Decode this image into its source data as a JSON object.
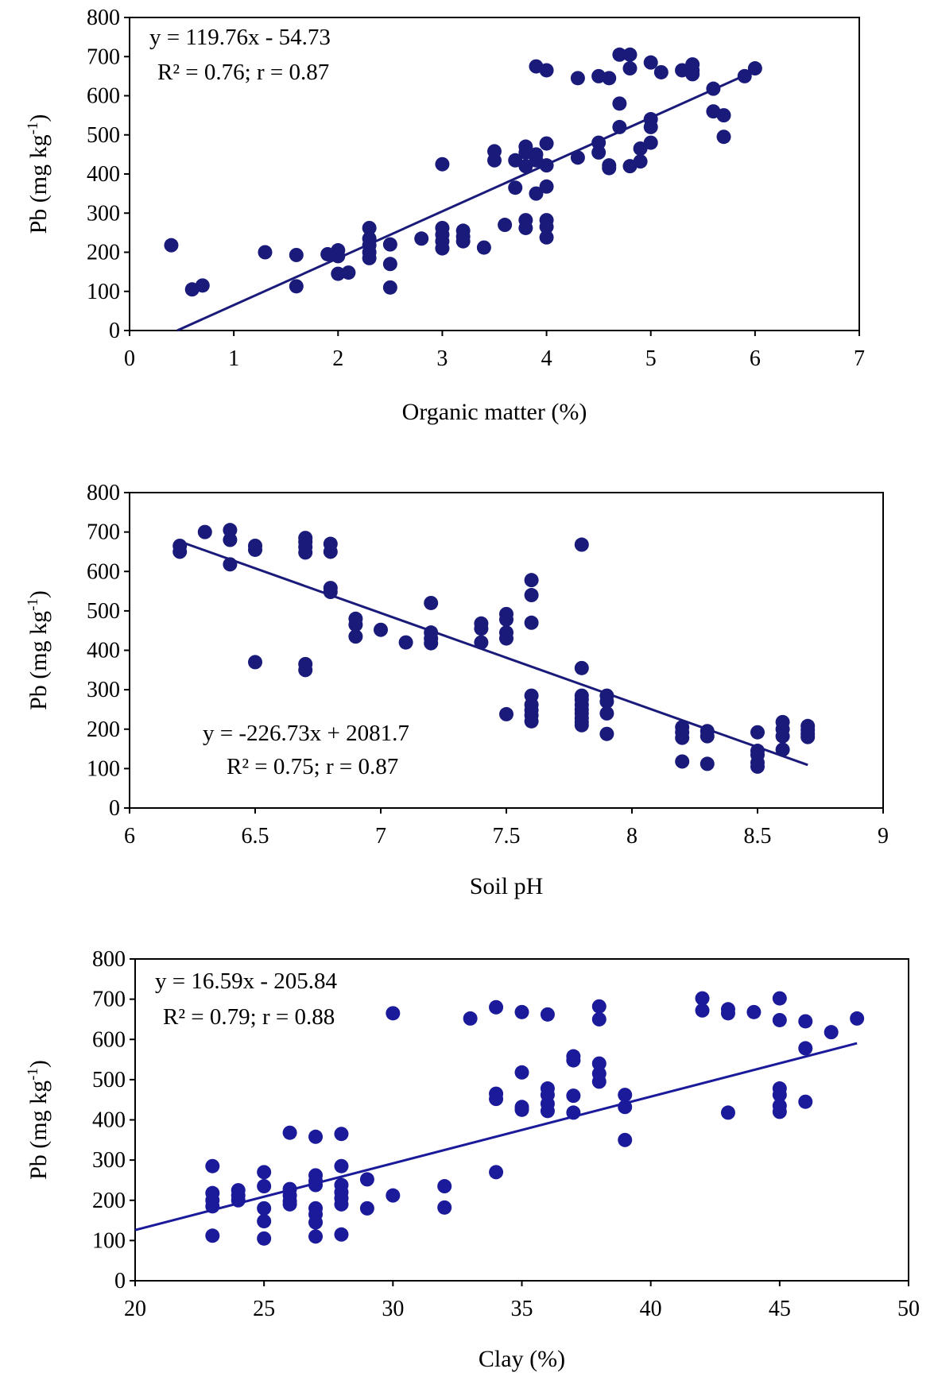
{
  "chart_data": [
    {
      "type": "scatter",
      "xlabel": "Organic matter (%)",
      "ylabel_main": "Pb (mg kg",
      "ylabel_sup": "-1",
      "ylabel_close": ")",
      "xlim": [
        0,
        7
      ],
      "ylim": [
        0,
        800
      ],
      "xticks": [
        "0",
        "1",
        "2",
        "3",
        "4",
        "5",
        "6",
        "7"
      ],
      "yticks": [
        "0",
        "100",
        "200",
        "300",
        "400",
        "500",
        "600",
        "700",
        "800"
      ],
      "equation": "y = 119.76x - 54.73",
      "stats": "R² = 0.76; r = 0.87",
      "equation_position": "top-left",
      "trendline": {
        "slope": 119.76,
        "intercept": -54.73,
        "x_range": [
          0.457,
          6.0
        ]
      },
      "colors": {
        "points": "#1a1a7a",
        "line": "#1a1a7a"
      },
      "points": [
        [
          0.4,
          218
        ],
        [
          0.6,
          105
        ],
        [
          0.7,
          115
        ],
        [
          1.3,
          200
        ],
        [
          1.6,
          193
        ],
        [
          1.6,
          113
        ],
        [
          1.9,
          195
        ],
        [
          2.0,
          205
        ],
        [
          2.0,
          190
        ],
        [
          2.0,
          145
        ],
        [
          2.1,
          148
        ],
        [
          2.3,
          262
        ],
        [
          2.3,
          235
        ],
        [
          2.3,
          218
        ],
        [
          2.3,
          200
        ],
        [
          2.3,
          185
        ],
        [
          2.5,
          220
        ],
        [
          2.5,
          170
        ],
        [
          2.5,
          110
        ],
        [
          2.8,
          235
        ],
        [
          3.0,
          425
        ],
        [
          3.0,
          262
        ],
        [
          3.0,
          245
        ],
        [
          3.0,
          228
        ],
        [
          3.0,
          210
        ],
        [
          3.2,
          255
        ],
        [
          3.2,
          240
        ],
        [
          3.2,
          228
        ],
        [
          3.4,
          212
        ],
        [
          3.5,
          458
        ],
        [
          3.5,
          435
        ],
        [
          3.6,
          270
        ],
        [
          3.7,
          435
        ],
        [
          3.7,
          365
        ],
        [
          3.8,
          470
        ],
        [
          3.8,
          455
        ],
        [
          3.8,
          420
        ],
        [
          3.8,
          282
        ],
        [
          3.8,
          262
        ],
        [
          3.9,
          675
        ],
        [
          3.9,
          450
        ],
        [
          3.9,
          435
        ],
        [
          3.9,
          350
        ],
        [
          4.0,
          665
        ],
        [
          4.0,
          478
        ],
        [
          4.0,
          422
        ],
        [
          4.0,
          368
        ],
        [
          4.0,
          282
        ],
        [
          4.0,
          265
        ],
        [
          4.0,
          238
        ],
        [
          4.3,
          645
        ],
        [
          4.3,
          442
        ],
        [
          4.5,
          650
        ],
        [
          4.5,
          480
        ],
        [
          4.5,
          455
        ],
        [
          4.6,
          645
        ],
        [
          4.6,
          422
        ],
        [
          4.6,
          415
        ],
        [
          4.7,
          705
        ],
        [
          4.7,
          580
        ],
        [
          4.7,
          520
        ],
        [
          4.8,
          705
        ],
        [
          4.8,
          670
        ],
        [
          4.8,
          420
        ],
        [
          4.9,
          465
        ],
        [
          4.9,
          432
        ],
        [
          5.0,
          685
        ],
        [
          5.0,
          540
        ],
        [
          5.0,
          520
        ],
        [
          5.0,
          480
        ],
        [
          5.1,
          660
        ],
        [
          5.3,
          665
        ],
        [
          5.4,
          680
        ],
        [
          5.4,
          665
        ],
        [
          5.4,
          655
        ],
        [
          5.6,
          618
        ],
        [
          5.6,
          560
        ],
        [
          5.7,
          550
        ],
        [
          5.7,
          495
        ],
        [
          5.9,
          650
        ],
        [
          6.0,
          670
        ]
      ]
    },
    {
      "type": "scatter",
      "xlabel": "Soil pH",
      "ylabel_main": "Pb (mg kg",
      "ylabel_sup": "-1",
      "ylabel_close": ")",
      "xlim": [
        6,
        9
      ],
      "ylim": [
        0,
        800
      ],
      "xticks": [
        "6",
        "6.5",
        "7",
        "7.5",
        "8",
        "8.5",
        "9"
      ],
      "yticks": [
        "0",
        "100",
        "200",
        "300",
        "400",
        "500",
        "600",
        "700",
        "800"
      ],
      "equation": "y = -226.73x + 2081.7",
      "stats": "R² = 0.75; r = 0.87",
      "equation_position": "bottom-center",
      "trendline": {
        "slope": -226.73,
        "intercept": 2081.7,
        "x_range": [
          6.2,
          8.7
        ]
      },
      "colors": {
        "points": "#1a1a7a",
        "line": "#1a1a7a"
      },
      "points": [
        [
          6.2,
          665
        ],
        [
          6.2,
          650
        ],
        [
          6.3,
          700
        ],
        [
          6.4,
          705
        ],
        [
          6.4,
          680
        ],
        [
          6.4,
          618
        ],
        [
          6.5,
          665
        ],
        [
          6.5,
          655
        ],
        [
          6.5,
          370
        ],
        [
          6.7,
          685
        ],
        [
          6.7,
          675
        ],
        [
          6.7,
          662
        ],
        [
          6.7,
          648
        ],
        [
          6.7,
          365
        ],
        [
          6.7,
          350
        ],
        [
          6.8,
          670
        ],
        [
          6.8,
          650
        ],
        [
          6.8,
          558
        ],
        [
          6.8,
          548
        ],
        [
          6.9,
          480
        ],
        [
          6.9,
          465
        ],
        [
          6.9,
          435
        ],
        [
          7.0,
          452
        ],
        [
          7.1,
          420
        ],
        [
          7.2,
          520
        ],
        [
          7.2,
          445
        ],
        [
          7.2,
          430
        ],
        [
          7.2,
          418
        ],
        [
          7.4,
          468
        ],
        [
          7.4,
          455
        ],
        [
          7.4,
          420
        ],
        [
          7.5,
          492
        ],
        [
          7.5,
          478
        ],
        [
          7.5,
          445
        ],
        [
          7.5,
          430
        ],
        [
          7.5,
          238
        ],
        [
          7.6,
          578
        ],
        [
          7.6,
          540
        ],
        [
          7.6,
          470
        ],
        [
          7.6,
          285
        ],
        [
          7.6,
          262
        ],
        [
          7.6,
          248
        ],
        [
          7.6,
          235
        ],
        [
          7.6,
          220
        ],
        [
          7.8,
          668
        ],
        [
          7.8,
          355
        ],
        [
          7.8,
          285
        ],
        [
          7.8,
          275
        ],
        [
          7.8,
          262
        ],
        [
          7.8,
          250
        ],
        [
          7.8,
          240
        ],
        [
          7.8,
          228
        ],
        [
          7.8,
          218
        ],
        [
          7.8,
          210
        ],
        [
          7.9,
          285
        ],
        [
          7.9,
          270
        ],
        [
          7.9,
          240
        ],
        [
          7.9,
          188
        ],
        [
          8.2,
          205
        ],
        [
          8.2,
          192
        ],
        [
          8.2,
          178
        ],
        [
          8.2,
          118
        ],
        [
          8.3,
          195
        ],
        [
          8.3,
          182
        ],
        [
          8.3,
          112
        ],
        [
          8.5,
          192
        ],
        [
          8.5,
          145
        ],
        [
          8.5,
          135
        ],
        [
          8.5,
          115
        ],
        [
          8.5,
          105
        ],
        [
          8.6,
          218
        ],
        [
          8.6,
          200
        ],
        [
          8.6,
          182
        ],
        [
          8.6,
          148
        ],
        [
          8.7,
          208
        ],
        [
          8.7,
          198
        ],
        [
          8.7,
          188
        ],
        [
          8.7,
          180
        ]
      ]
    },
    {
      "type": "scatter",
      "xlabel": "Clay (%)",
      "ylabel_main": "Pb (mg kg",
      "ylabel_sup": "-1",
      "ylabel_close": ")",
      "xlim": [
        20,
        50
      ],
      "ylim": [
        0,
        800
      ],
      "xticks": [
        "20",
        "25",
        "30",
        "35",
        "40",
        "45",
        "50"
      ],
      "yticks": [
        "0",
        "100",
        "200",
        "300",
        "400",
        "500",
        "600",
        "700",
        "800"
      ],
      "equation": "y = 16.59x - 205.84",
      "stats": "R² = 0.79; r = 0.88",
      "equation_position": "top-left",
      "trendline": {
        "slope": 16.59,
        "intercept": -205.84,
        "x_range": [
          20,
          48
        ]
      },
      "colors": {
        "points": "#1a1a9a",
        "line": "#1a1a9a"
      },
      "points": [
        [
          23,
          285
        ],
        [
          23,
          218
        ],
        [
          23,
          200
        ],
        [
          23,
          185
        ],
        [
          23,
          112
        ],
        [
          24,
          225
        ],
        [
          24,
          212
        ],
        [
          24,
          200
        ],
        [
          25,
          270
        ],
        [
          25,
          235
        ],
        [
          25,
          180
        ],
        [
          25,
          148
        ],
        [
          25,
          105
        ],
        [
          26,
          368
        ],
        [
          26,
          228
        ],
        [
          26,
          212
        ],
        [
          26,
          198
        ],
        [
          26,
          190
        ],
        [
          27,
          358
        ],
        [
          27,
          262
        ],
        [
          27,
          248
        ],
        [
          27,
          238
        ],
        [
          27,
          180
        ],
        [
          27,
          165
        ],
        [
          27,
          145
        ],
        [
          27,
          110
        ],
        [
          28,
          365
        ],
        [
          28,
          285
        ],
        [
          28,
          238
        ],
        [
          28,
          220
        ],
        [
          28,
          205
        ],
        [
          28,
          190
        ],
        [
          28,
          115
        ],
        [
          29,
          252
        ],
        [
          29,
          180
        ],
        [
          30,
          665
        ],
        [
          30,
          212
        ],
        [
          32,
          235
        ],
        [
          32,
          182
        ],
        [
          33,
          652
        ],
        [
          34,
          680
        ],
        [
          34,
          465
        ],
        [
          34,
          452
        ],
        [
          34,
          270
        ],
        [
          35,
          668
        ],
        [
          35,
          518
        ],
        [
          35,
          432
        ],
        [
          35,
          425
        ],
        [
          36,
          662
        ],
        [
          36,
          478
        ],
        [
          36,
          462
        ],
        [
          36,
          440
        ],
        [
          36,
          422
        ],
        [
          37,
          558
        ],
        [
          37,
          548
        ],
        [
          37,
          460
        ],
        [
          37,
          418
        ],
        [
          38,
          682
        ],
        [
          38,
          650
        ],
        [
          38,
          540
        ],
        [
          38,
          515
        ],
        [
          38,
          495
        ],
        [
          39,
          462
        ],
        [
          39,
          432
        ],
        [
          39,
          350
        ],
        [
          42,
          702
        ],
        [
          42,
          672
        ],
        [
          43,
          675
        ],
        [
          43,
          665
        ],
        [
          43,
          418
        ],
        [
          44,
          668
        ],
        [
          45,
          702
        ],
        [
          45,
          648
        ],
        [
          45,
          478
        ],
        [
          45,
          462
        ],
        [
          45,
          435
        ],
        [
          45,
          420
        ],
        [
          46,
          645
        ],
        [
          46,
          578
        ],
        [
          46,
          445
        ],
        [
          47,
          618
        ],
        [
          48,
          652
        ]
      ]
    }
  ]
}
